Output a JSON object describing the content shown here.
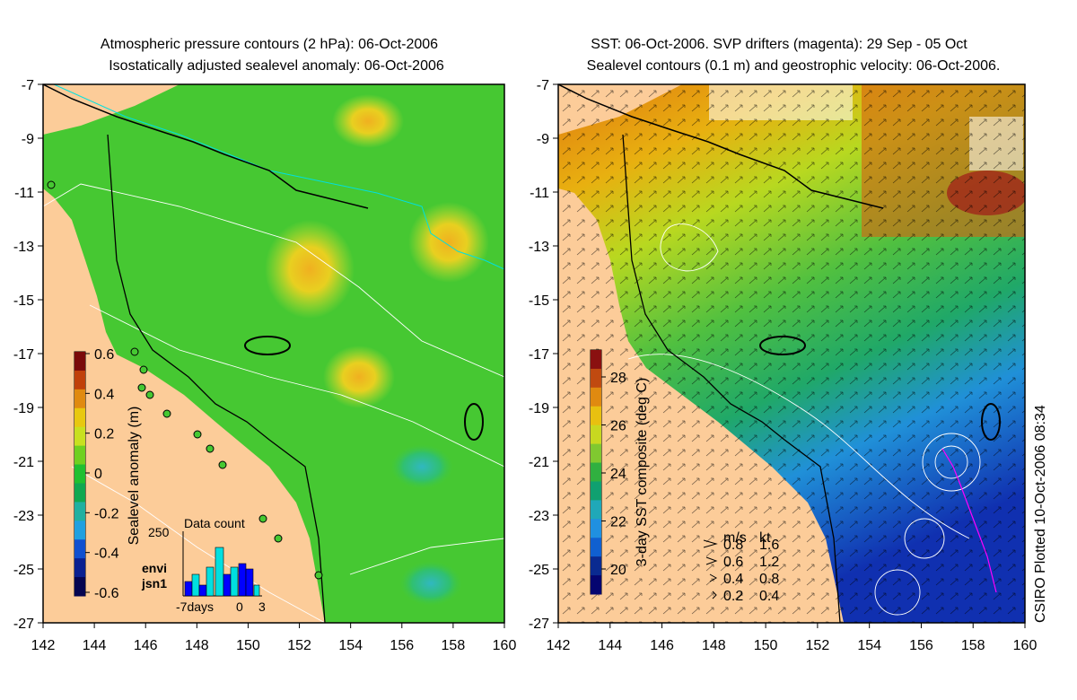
{
  "left_panel": {
    "title_line1": "Atmospheric pressure contours (2 hPa): 06-Oct-2006",
    "title_line2": "Isostatically adjusted sealevel anomaly: 06-Oct-2006",
    "y_ticks": [
      "-7",
      "-9",
      "-11",
      "-13",
      "-15",
      "-17",
      "-19",
      "-21",
      "-23",
      "-25",
      "-27"
    ],
    "x_ticks": [
      "142",
      "144",
      "146",
      "148",
      "150",
      "152",
      "154",
      "156",
      "158",
      "160"
    ],
    "colorbar": {
      "label": "Sealevel anomaly (m)",
      "ticks": [
        "0.6",
        "0.4",
        "0.2",
        "0",
        "-0.2",
        "-0.4",
        "-0.6"
      ],
      "colors": [
        "#7a0a0a",
        "#c0400a",
        "#e08a10",
        "#e8c810",
        "#c8e020",
        "#70d020",
        "#20c030",
        "#10a850",
        "#20b0a0",
        "#20a0e0",
        "#1050d0",
        "#0a2090",
        "#050550"
      ]
    },
    "data_count": {
      "title": "Data count",
      "ymax_label": "250",
      "x_labels": [
        "-7days",
        "0",
        "3"
      ],
      "missions": [
        {
          "name": "envi",
          "color": "#00e0e0"
        },
        {
          "name": "jsn1",
          "color": "#0000ff"
        }
      ]
    }
  },
  "right_panel": {
    "title_line1": "SST: 06-Oct-2006. SVP drifters (magenta): 29 Sep - 05 Oct",
    "title_line2": "Sealevel contours (0.1 m) and geostrophic velocity: 06-Oct-2006.",
    "y_ticks": [
      "-7",
      "-9",
      "-11",
      "-13",
      "-15",
      "-17",
      "-19",
      "-21",
      "-23",
      "-25",
      "-27"
    ],
    "x_ticks": [
      "142",
      "144",
      "146",
      "148",
      "150",
      "152",
      "154",
      "156",
      "158",
      "160"
    ],
    "colorbar": {
      "label": "3-day SST composite (deg C)",
      "ticks": [
        "28",
        "26",
        "24",
        "22",
        "20"
      ],
      "colors": [
        "#8a1010",
        "#c04a10",
        "#e08a10",
        "#e8c010",
        "#c8d820",
        "#80c830",
        "#30b040",
        "#10a070",
        "#20a8b8",
        "#2090e0",
        "#1060d0",
        "#0a2a90",
        "#050570"
      ]
    },
    "velocity_legend": {
      "header_ms": "m/s",
      "header_kt": "kt",
      "rows": [
        {
          "ms": "0.8",
          "kt": "1.6"
        },
        {
          "ms": "0.6",
          "kt": "1.2"
        },
        {
          "ms": "0.4",
          "kt": "0.8"
        },
        {
          "ms": "0.2",
          "kt": "0.4"
        }
      ]
    }
  },
  "footer": {
    "plotted": "CSIRO Plotted 10-Oct-2006 08:34"
  },
  "colors": {
    "land": "#fccc99",
    "coast": "#000000",
    "contour": "#ffffff",
    "isobar": "#00e0e0",
    "drifter": "#ff00ff"
  }
}
